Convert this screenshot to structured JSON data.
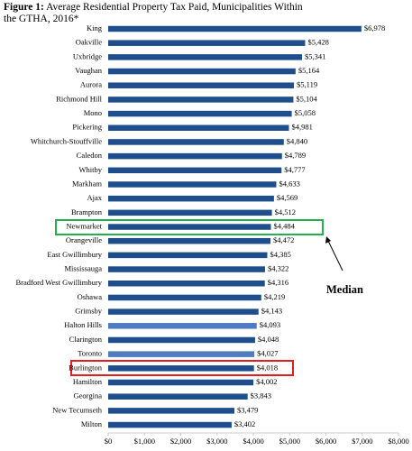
{
  "chart_data": {
    "type": "bar",
    "orientation": "horizontal",
    "title_label": "Figure 1:",
    "title": "Average Residential Property Tax Paid, Municipalities Within the GTHA, 2016*",
    "categories": [
      "King",
      "Oakville",
      "Uxbridge",
      "Vaughan",
      "Aurora",
      "Richmond Hill",
      "Mono",
      "Pickering",
      "Whitchurch-Stouffville",
      "Caledon",
      "Whitby",
      "Markham",
      "Ajax",
      "Brampton",
      "Newmarket",
      "Orangeville",
      "East Gwillimbury",
      "Mississauga",
      "Bradford West Gwillimbury",
      "Oshawa",
      "Grimsby",
      "Halton Hills",
      "Clarington",
      "Toronto",
      "Burlington",
      "Hamilton",
      "Georgina",
      "New Tecumseth",
      "Milton"
    ],
    "values": [
      6978,
      5428,
      5341,
      5164,
      5119,
      5104,
      5058,
      4981,
      4840,
      4789,
      4777,
      4633,
      4569,
      4512,
      4484,
      4472,
      4385,
      4322,
      4316,
      4219,
      4143,
      4093,
      4048,
      4027,
      4018,
      4002,
      3843,
      3479,
      3402
    ],
    "value_labels": [
      "$6,978",
      "$5,428",
      "$5,341",
      "$5,164",
      "$5,119",
      "$5,104",
      "$5,058",
      "$4,981",
      "$4,840",
      "$4,789",
      "$4,777",
      "$4,633",
      "$4,569",
      "$4,512",
      "$4,484",
      "$4,472",
      "$4,385",
      "$4,322",
      "$4,316",
      "$4,219",
      "$4,143",
      "$4,093",
      "$4,048",
      "$4,027",
      "$4,018",
      "$4,002",
      "$3,843",
      "$3,479",
      "$3,402"
    ],
    "colors": [
      "#1f4e8d",
      "#1f4e8d",
      "#1f4e8d",
      "#1f4e8d",
      "#1f4e8d",
      "#1f4e8d",
      "#1f4e8d",
      "#1f4e8d",
      "#1f4e8d",
      "#1f4e8d",
      "#1f4e8d",
      "#1f4e8d",
      "#1f4e8d",
      "#1f4e8d",
      "#1f4e8d",
      "#1f4e8d",
      "#1f4e8d",
      "#1f4e8d",
      "#1f4e8d",
      "#1f4e8d",
      "#1f4e8d",
      "#4f7cc0",
      "#1f4e8d",
      "#4f7cc0",
      "#1f4e8d",
      "#1f4e8d",
      "#1f4e8d",
      "#1f4e8d",
      "#1f4e8d"
    ],
    "xlim": [
      0,
      8000
    ],
    "xticks": [
      {
        "value": 0,
        "label": "$0"
      },
      {
        "value": 1000,
        "label": "$1,000"
      },
      {
        "value": 2000,
        "label": "$2,000"
      },
      {
        "value": 3000,
        "label": "$3,000"
      },
      {
        "value": 4000,
        "label": "$4,000"
      },
      {
        "value": 5000,
        "label": "$5,000"
      },
      {
        "value": 6000,
        "label": "$6,000"
      },
      {
        "value": 7000,
        "label": "$7,000"
      },
      {
        "value": 8000,
        "label": "$8,000"
      }
    ],
    "annotation": "Median"
  }
}
